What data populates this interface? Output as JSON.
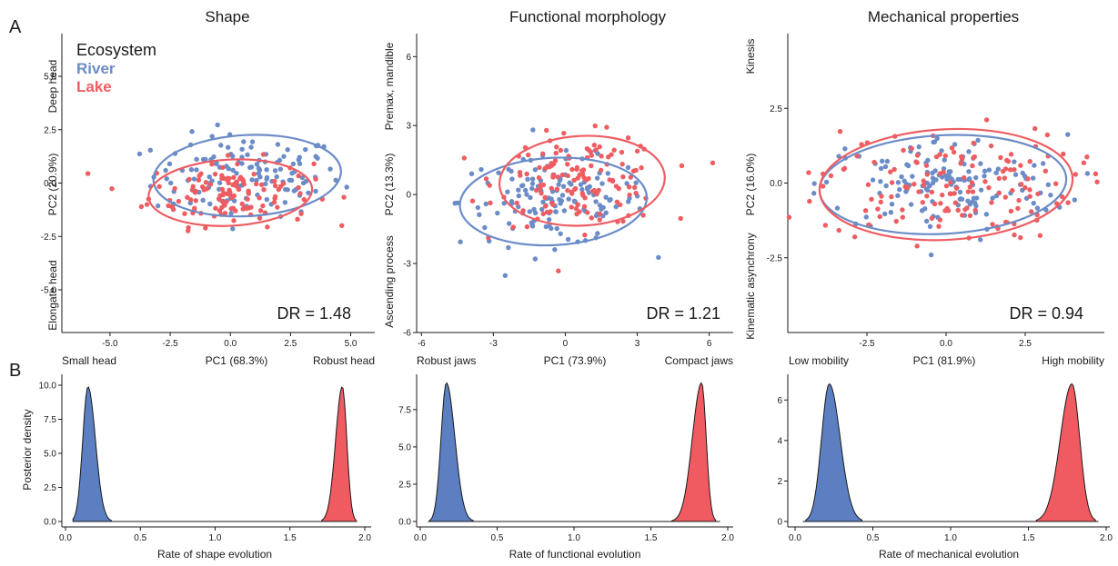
{
  "panel_labels": {
    "a": "A",
    "b": "B"
  },
  "legend": {
    "title": "Ecosystem",
    "items": [
      "River",
      "Lake"
    ]
  },
  "colors": {
    "river": "#6b8cc7",
    "lake": "#ee5d62",
    "river_fill": "#5b7fc1",
    "lake_fill": "#ef5b60"
  },
  "chart_data": [
    {
      "type": "scatter",
      "title": "Shape",
      "xlabel": "PC1 (68.3%)",
      "ylabel": "PC2 (20.9%)",
      "xlim": [
        -7,
        6
      ],
      "ylim": [
        -7,
        7
      ],
      "xticks": [
        -5.0,
        -2.5,
        0.0,
        2.5,
        5.0
      ],
      "xtick_labels": [
        "-5.0",
        "-2.5",
        "0.0",
        "2.5",
        "5.0"
      ],
      "yticks": [
        -5.0,
        -2.5,
        0.0,
        2.5,
        5.0
      ],
      "ytick_labels": [
        "-5.0",
        "-2.5",
        "0.0",
        "2.5",
        "5.0"
      ],
      "x_low_label": "Small head",
      "x_high_label": "Robust head",
      "y_high_label": "Deep head",
      "y_low_label": "Elongate head",
      "annotation": "DR = 1.48",
      "series": [
        {
          "name": "River",
          "ellipse": {
            "cx": 0.7,
            "cy": 0.35,
            "rx": 3.9,
            "ry": 1.9
          },
          "count": 130
        },
        {
          "name": "Lake",
          "ellipse": {
            "cx": 0.0,
            "cy": -0.45,
            "rx": 3.4,
            "ry": 1.55
          },
          "count": 130
        }
      ]
    },
    {
      "type": "scatter",
      "title": "Functional morphology",
      "xlabel": "PC1 (73.9%)",
      "ylabel": "PC2 (13.3%)",
      "xlim": [
        -6.2,
        7
      ],
      "ylim": [
        -6,
        7
      ],
      "xticks": [
        -6,
        -3,
        0,
        3,
        6
      ],
      "xtick_labels": [
        "-6",
        "-3",
        "0",
        "3",
        "6"
      ],
      "yticks": [
        -6,
        -3,
        0,
        3,
        6
      ],
      "ytick_labels": [
        "-6",
        "-3",
        "0",
        "3",
        "6"
      ],
      "x_low_label": "Robust jaws",
      "x_high_label": "Compact jaws",
      "y_high_label": "Premax, mandible",
      "y_low_label": "Ascending process",
      "annotation": "DR = 1.21",
      "series": [
        {
          "name": "River",
          "ellipse": {
            "cx": -0.5,
            "cy": -0.3,
            "rx": 3.9,
            "ry": 1.9
          },
          "count": 140
        },
        {
          "name": "Lake",
          "ellipse": {
            "cx": 0.7,
            "cy": 0.6,
            "rx": 3.45,
            "ry": 1.95
          },
          "count": 140
        }
      ]
    },
    {
      "type": "scatter",
      "title": "Mechanical properties",
      "xlabel": "PC1 (81.9%)",
      "ylabel": "PC2 (16.0%)",
      "xlim": [
        -5,
        5
      ],
      "ylim": [
        -5,
        5
      ],
      "xticks": [
        -2.5,
        0.0,
        2.5
      ],
      "xtick_labels": [
        "-2.5",
        "0.0",
        "2.5"
      ],
      "yticks": [
        -2.5,
        0.0,
        2.5
      ],
      "ytick_labels": [
        "-2.5",
        "0.0",
        "2.5"
      ],
      "x_low_label": "Low mobility",
      "x_high_label": "High mobility",
      "y_high_label": "Kinesis",
      "y_low_label": "Kinematic asynchrony",
      "annotation": "DR = 0.94",
      "series": [
        {
          "name": "River",
          "ellipse": {
            "cx": -0.1,
            "cy": -0.05,
            "rx": 3.9,
            "ry": 1.65
          },
          "count": 150
        },
        {
          "name": "Lake",
          "ellipse": {
            "cx": 0.0,
            "cy": -0.05,
            "rx": 4.0,
            "ry": 1.85
          },
          "count": 150
        }
      ]
    },
    {
      "type": "area",
      "xlabel": "Rate of shape evolution",
      "ylabel": "Posterior density",
      "xlim": [
        0,
        2
      ],
      "ylim": [
        0,
        10.4
      ],
      "xticks": [
        0.0,
        0.5,
        1.0,
        1.5,
        2.0
      ],
      "xtick_labels": [
        "0.0",
        "0.5",
        "1.0",
        "1.5",
        "2.0"
      ],
      "yticks": [
        0.0,
        2.5,
        5.0,
        7.5,
        10.0
      ],
      "ytick_labels": [
        "0.0",
        "2.5",
        "5.0",
        "7.5",
        "10.0"
      ],
      "series": [
        {
          "name": "River",
          "mode": 0.15,
          "peak": 9.9,
          "sd_left": 0.035,
          "sd_right": 0.05
        },
        {
          "name": "Lake",
          "mode": 1.85,
          "peak": 9.9,
          "sd_left": 0.045,
          "sd_right": 0.03
        }
      ]
    },
    {
      "type": "area",
      "xlabel": "Rate of functional evolution",
      "ylabel": "",
      "xlim": [
        0,
        2
      ],
      "ylim": [
        0,
        9.5
      ],
      "xticks": [
        0.0,
        0.5,
        1.0,
        1.5,
        2.0
      ],
      "xtick_labels": [
        "0.0",
        "0.5",
        "1.0",
        "1.5",
        "2.0"
      ],
      "yticks": [
        0.0,
        2.5,
        5.0,
        7.5
      ],
      "ytick_labels": [
        "0.0",
        "2.5",
        "5.0",
        "7.5"
      ],
      "series": [
        {
          "name": "River",
          "mode": 0.17,
          "peak": 9.3,
          "sd_left": 0.035,
          "sd_right": 0.055
        },
        {
          "name": "Lake",
          "mode": 1.83,
          "peak": 9.3,
          "sd_left": 0.06,
          "sd_right": 0.03
        }
      ]
    },
    {
      "type": "area",
      "xlabel": "Rate of mechanical evolution",
      "ylabel": "",
      "xlim": [
        0,
        2
      ],
      "ylim": [
        0,
        7
      ],
      "xticks": [
        0.0,
        0.5,
        1.0,
        1.5,
        2.0
      ],
      "xtick_labels": [
        "0.0",
        "0.5",
        "1.0",
        "1.5",
        "2.0"
      ],
      "yticks": [
        0,
        2,
        4,
        6
      ],
      "ytick_labels": [
        "0",
        "2",
        "4",
        "6"
      ],
      "series": [
        {
          "name": "River",
          "mode": 0.22,
          "peak": 6.8,
          "sd_left": 0.05,
          "sd_right": 0.07
        },
        {
          "name": "Lake",
          "mode": 1.78,
          "peak": 6.8,
          "sd_left": 0.075,
          "sd_right": 0.05
        }
      ]
    }
  ]
}
